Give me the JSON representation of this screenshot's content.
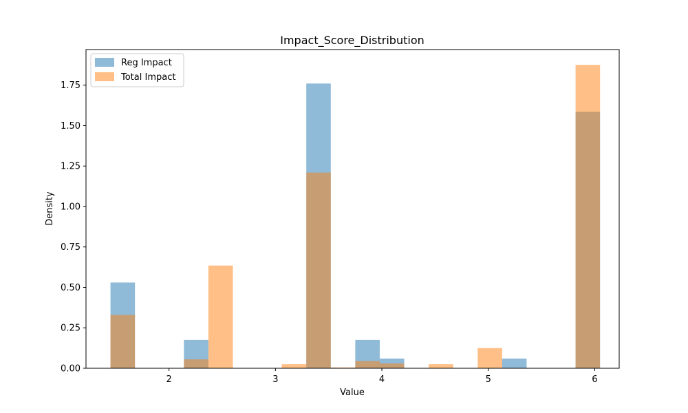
{
  "chart_data": {
    "type": "histogram",
    "title": "Impact_Score_Distribution",
    "xlabel": "Value",
    "ylabel": "Density",
    "xlim": [
      1.22,
      6.23
    ],
    "ylim": [
      0,
      1.97
    ],
    "xticks": [
      2,
      3,
      4,
      5,
      6
    ],
    "yticks": [
      0.0,
      0.25,
      0.5,
      0.75,
      1.0,
      1.25,
      1.5,
      1.75
    ],
    "ytick_labels": [
      "0.00",
      "0.25",
      "0.50",
      "0.75",
      "1.00",
      "1.25",
      "1.50",
      "1.75"
    ],
    "grid": false,
    "legend_position": "top-left",
    "bin_edges": [
      1.45,
      1.68,
      1.91,
      2.14,
      2.37,
      2.6,
      2.83,
      3.06,
      3.29,
      3.52,
      3.75,
      3.98,
      4.21,
      4.44,
      4.67,
      4.9,
      5.13,
      5.36,
      5.59,
      5.82,
      6.05
    ],
    "series": [
      {
        "name": "Reg Impact",
        "color": "#1f77b4",
        "opacity": 0.5,
        "values": [
          0.53,
          0,
          0,
          0.175,
          0,
          0,
          0,
          0,
          1.76,
          0,
          0.175,
          0.06,
          0,
          0,
          0,
          0,
          0.06,
          0,
          0,
          1.585
        ]
      },
      {
        "name": "Total Impact",
        "color": "#ff7f0e",
        "opacity": 0.5,
        "values": [
          0.33,
          0,
          0,
          0.055,
          0.635,
          0,
          0,
          0.025,
          1.21,
          0.005,
          0.045,
          0.03,
          0,
          0.025,
          0,
          0.125,
          0,
          0,
          0,
          1.875
        ]
      }
    ]
  }
}
